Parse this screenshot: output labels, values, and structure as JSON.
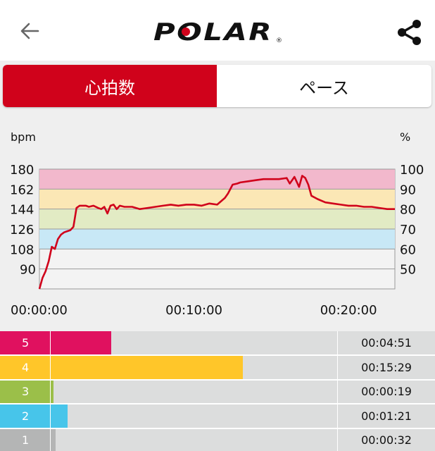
{
  "header": {
    "back_icon": "arrow-left-icon",
    "logo_text": "POLAR",
    "share_icon": "share-icon"
  },
  "tabs": [
    {
      "label": "心拍数",
      "active": true
    },
    {
      "label": "ペース",
      "active": false
    }
  ],
  "chart_data": {
    "type": "line",
    "left_axis_unit": "bpm",
    "right_axis_unit": "%",
    "left_ticks": [
      "180",
      "162",
      "144",
      "126",
      "108",
      "90"
    ],
    "right_ticks": [
      "100",
      "90",
      "80",
      "70",
      "60",
      "50"
    ],
    "x_ticks": [
      "00:00:00",
      "00:10:00",
      "00:20:00"
    ],
    "ylim": [
      72,
      180
    ],
    "xlim_minutes": [
      0,
      23
    ],
    "zone_colors": [
      "#f2b8cc",
      "#fbe7b5",
      "#e2ebc4",
      "#c8e8f6"
    ],
    "line_color": "#d0021b",
    "series": [
      {
        "x": [
          0,
          0.2,
          0.4,
          0.6,
          0.8,
          1.0,
          1.2,
          1.4,
          1.6,
          1.8,
          2.0,
          2.2,
          2.4,
          2.6,
          2.7,
          2.8,
          3.0,
          3.2,
          3.5,
          3.8,
          4.0,
          4.2,
          4.4,
          4.6,
          4.8,
          5.0,
          5.2,
          5.5,
          6.0,
          6.5,
          7.0,
          7.5,
          8.0,
          8.5,
          9.0,
          9.5,
          10.0,
          10.5,
          11.0,
          11.5,
          12.0,
          12.2,
          12.5,
          12.8,
          13.0,
          13.5,
          14.0,
          14.5,
          15.0,
          15.5,
          16.0,
          16.2,
          16.5,
          16.8,
          17.0,
          17.2,
          17.4,
          17.6,
          18.0,
          18.5,
          19.0,
          19.5,
          20.0,
          20.5,
          21.0,
          21.5,
          22.0,
          22.5,
          23.0
        ],
        "y": [
          72,
          82,
          88,
          97,
          110,
          108,
          117,
          121,
          123,
          124,
          125,
          128,
          145,
          147,
          147,
          147,
          147,
          146,
          147,
          145,
          144,
          146,
          140,
          147,
          148,
          144,
          147,
          146,
          146,
          144,
          145,
          146,
          147,
          148,
          147,
          148,
          148,
          147,
          149,
          148,
          154,
          158,
          166,
          167,
          168,
          169,
          170,
          171,
          171,
          171,
          172,
          167,
          173,
          164,
          174,
          172,
          166,
          156,
          153,
          150,
          149,
          148,
          147,
          147,
          146,
          146,
          145,
          144,
          144
        ]
      }
    ],
    "grid": true
  },
  "zones": [
    {
      "number": "5",
      "time": "00:04:51",
      "color": "#e0115f",
      "fraction": 0.255
    },
    {
      "number": "4",
      "time": "00:15:29",
      "color": "#ffc629",
      "fraction": 0.558
    },
    {
      "number": "3",
      "time": "00:00:19",
      "color": "#9bbf49",
      "fraction": 0.123
    },
    {
      "number": "2",
      "time": "00:01:21",
      "color": "#47c5ea",
      "fraction": 0.155
    },
    {
      "number": "1",
      "time": "00:00:32",
      "color": "#b4b5b5",
      "fraction": 0.128
    }
  ]
}
